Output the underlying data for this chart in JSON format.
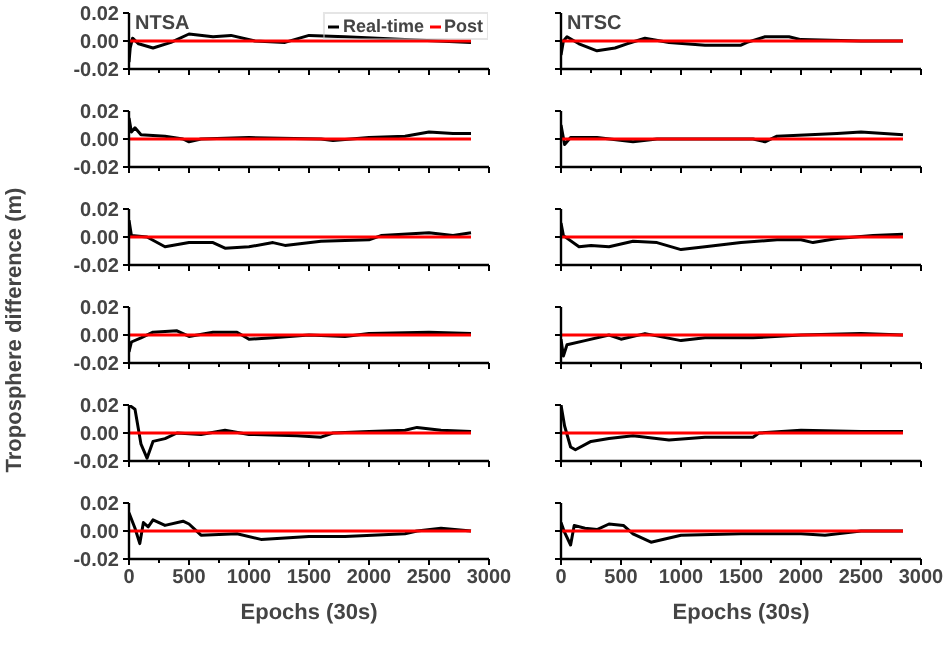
{
  "chart_data": [
    {
      "type": "line",
      "title": "NTSA",
      "ylabel": "Troposphere difference (m)",
      "legend": "top right",
      "tick_labels": "y",
      "xlim": [
        0,
        3000
      ],
      "ylim": [
        -0.02,
        0.02
      ],
      "xticks": [
        0,
        {
          "value": 250,
          "label": null
        },
        500,
        {
          "value": 750,
          "label": null
        },
        1000,
        {
          "value": 1250,
          "label": null
        },
        1500,
        {
          "value": 1750,
          "label": null
        },
        2000,
        {
          "value": 2250,
          "label": null
        },
        2500,
        {
          "value": 2750,
          "label": null
        },
        3000
      ],
      "yticks": [
        {
          "value": -0.02,
          "label": "-0.02"
        },
        {
          "value": 0,
          "label": "0.00"
        },
        {
          "value": 0.02,
          "label": "0.02"
        }
      ],
      "series": [
        {
          "name": "Real-time",
          "color": "#000000",
          "x": [
            0,
            10,
            30,
            80,
            200,
            350,
            500,
            700,
            850,
            1050,
            1300,
            1500,
            1800,
            2300,
            2850
          ],
          "values": [
            -0.015,
            -0.005,
            0.002,
            -0.002,
            -0.005,
            -0.001,
            0.005,
            0.003,
            0.004,
            0.0,
            -0.001,
            0.004,
            0.003,
            0.001,
            -0.001
          ]
        },
        {
          "name": "Post",
          "color": "#ff0000",
          "x": [
            0,
            2850
          ],
          "values": [
            0,
            0
          ]
        }
      ]
    },
    {
      "type": "line",
      "title": "NTSC",
      "tick_labels": false,
      "xlim": [
        0,
        3000
      ],
      "ylim": [
        -0.02,
        0.02
      ],
      "xticks": [
        0,
        {
          "value": 250,
          "label": null
        },
        500,
        {
          "value": 750,
          "label": null
        },
        1000,
        {
          "value": 1250,
          "label": null
        },
        1500,
        {
          "value": 1750,
          "label": null
        },
        2000,
        {
          "value": 2250,
          "label": null
        },
        2500,
        {
          "value": 2750,
          "label": null
        },
        3000
      ],
      "yticks": [
        {
          "value": -0.02,
          "label": null
        },
        {
          "value": 0,
          "label": null
        },
        {
          "value": 0.02,
          "label": null
        }
      ],
      "series": [
        {
          "color": "#000000",
          "x": [
            0,
            20,
            50,
            150,
            300,
            450,
            550,
            700,
            900,
            1200,
            1500,
            1550,
            1700,
            1900,
            2000,
            2500,
            2850
          ],
          "values": [
            -0.01,
            0.0,
            0.003,
            -0.002,
            -0.007,
            -0.005,
            -0.002,
            0.002,
            -0.001,
            -0.003,
            -0.003,
            -0.001,
            0.003,
            0.003,
            0.001,
            0.0,
            0.0
          ]
        },
        {
          "color": "#ff0000",
          "x": [
            0,
            2850
          ],
          "values": [
            0,
            0
          ]
        }
      ]
    },
    {
      "type": "line",
      "tick_labels": "y",
      "xlim": [
        0,
        3000
      ],
      "ylim": [
        -0.02,
        0.02
      ],
      "xticks": [
        0,
        {
          "value": 250,
          "label": null
        },
        500,
        {
          "value": 750,
          "label": null
        },
        1000,
        {
          "value": 1250,
          "label": null
        },
        1500,
        {
          "value": 1750,
          "label": null
        },
        2000,
        {
          "value": 2250,
          "label": null
        },
        2500,
        {
          "value": 2750,
          "label": null
        },
        3000
      ],
      "yticks": [
        {
          "value": -0.02,
          "label": "-0.02"
        },
        {
          "value": 0,
          "label": "0.00"
        },
        {
          "value": 0.02,
          "label": "0.02"
        }
      ],
      "series": [
        {
          "color": "#000000",
          "x": [
            0,
            20,
            50,
            100,
            300,
            450,
            500,
            600,
            1000,
            1600,
            1700,
            2000,
            2300,
            2500,
            2700,
            2850
          ],
          "values": [
            0.015,
            0.005,
            0.008,
            0.003,
            0.002,
            0.0,
            -0.002,
            0.0,
            0.001,
            0.0,
            -0.001,
            0.001,
            0.002,
            0.005,
            0.004,
            0.004
          ]
        },
        {
          "color": "#ff0000",
          "x": [
            0,
            2850
          ],
          "values": [
            0,
            0
          ]
        }
      ]
    },
    {
      "type": "line",
      "tick_labels": false,
      "xlim": [
        0,
        3000
      ],
      "ylim": [
        -0.02,
        0.02
      ],
      "xticks": [
        0,
        {
          "value": 250,
          "label": null
        },
        500,
        {
          "value": 750,
          "label": null
        },
        1000,
        {
          "value": 1250,
          "label": null
        },
        1500,
        {
          "value": 1750,
          "label": null
        },
        2000,
        {
          "value": 2250,
          "label": null
        },
        2500,
        {
          "value": 2750,
          "label": null
        },
        3000
      ],
      "yticks": [
        {
          "value": -0.02,
          "label": null
        },
        {
          "value": 0,
          "label": null
        },
        {
          "value": 0.02,
          "label": null
        }
      ],
      "series": [
        {
          "color": "#000000",
          "x": [
            0,
            30,
            80,
            300,
            600,
            800,
            1600,
            1700,
            1800,
            2300,
            2500,
            2850
          ],
          "values": [
            0.01,
            -0.004,
            0.001,
            0.001,
            -0.002,
            0.0,
            0.0,
            -0.002,
            0.002,
            0.004,
            0.005,
            0.003
          ]
        },
        {
          "color": "#ff0000",
          "x": [
            0,
            2850
          ],
          "values": [
            0,
            0
          ]
        }
      ]
    },
    {
      "type": "line",
      "tick_labels": "y",
      "xlim": [
        0,
        3000
      ],
      "ylim": [
        -0.02,
        0.02
      ],
      "xticks": [
        0,
        {
          "value": 250,
          "label": null
        },
        500,
        {
          "value": 750,
          "label": null
        },
        1000,
        {
          "value": 1250,
          "label": null
        },
        1500,
        {
          "value": 1750,
          "label": null
        },
        2000,
        {
          "value": 2250,
          "label": null
        },
        2500,
        {
          "value": 2750,
          "label": null
        },
        3000
      ],
      "yticks": [
        {
          "value": -0.02,
          "label": "-0.02"
        },
        {
          "value": 0,
          "label": "0.00"
        },
        {
          "value": 0.02,
          "label": "0.02"
        }
      ],
      "series": [
        {
          "color": "#000000",
          "x": [
            0,
            20,
            150,
            300,
            500,
            700,
            800,
            1000,
            1200,
            1300,
            1600,
            2000,
            2100,
            2500,
            2700,
            2850
          ],
          "values": [
            0.012,
            0.001,
            0.0,
            -0.007,
            -0.004,
            -0.004,
            -0.008,
            -0.007,
            -0.004,
            -0.006,
            -0.003,
            -0.002,
            0.001,
            0.003,
            0.001,
            0.003
          ]
        },
        {
          "color": "#ff0000",
          "x": [
            0,
            2850
          ],
          "values": [
            0,
            0
          ]
        }
      ]
    },
    {
      "type": "line",
      "tick_labels": false,
      "xlim": [
        0,
        3000
      ],
      "ylim": [
        -0.02,
        0.02
      ],
      "xticks": [
        0,
        {
          "value": 250,
          "label": null
        },
        500,
        {
          "value": 750,
          "label": null
        },
        1000,
        {
          "value": 1250,
          "label": null
        },
        1500,
        {
          "value": 1750,
          "label": null
        },
        2000,
        {
          "value": 2250,
          "label": null
        },
        2500,
        {
          "value": 2750,
          "label": null
        },
        3000
      ],
      "yticks": [
        {
          "value": -0.02,
          "label": null
        },
        {
          "value": 0,
          "label": null
        },
        {
          "value": 0.02,
          "label": null
        }
      ],
      "series": [
        {
          "color": "#000000",
          "x": [
            0,
            20,
            150,
            250,
            400,
            600,
            800,
            1000,
            1200,
            1500,
            1800,
            2000,
            2100,
            2300,
            2600,
            2850
          ],
          "values": [
            0.01,
            0.001,
            -0.007,
            -0.006,
            -0.007,
            -0.003,
            -0.004,
            -0.009,
            -0.007,
            -0.004,
            -0.002,
            -0.002,
            -0.004,
            -0.001,
            0.001,
            0.002
          ]
        },
        {
          "color": "#ff0000",
          "x": [
            0,
            2850
          ],
          "values": [
            0,
            0
          ]
        }
      ]
    },
    {
      "type": "line",
      "tick_labels": "y",
      "xlim": [
        0,
        3000
      ],
      "ylim": [
        -0.02,
        0.02
      ],
      "xticks": [
        0,
        {
          "value": 250,
          "label": null
        },
        500,
        {
          "value": 750,
          "label": null
        },
        1000,
        {
          "value": 1250,
          "label": null
        },
        1500,
        {
          "value": 1750,
          "label": null
        },
        2000,
        {
          "value": 2250,
          "label": null
        },
        2500,
        {
          "value": 2750,
          "label": null
        },
        3000
      ],
      "yticks": [
        {
          "value": -0.02,
          "label": "-0.02"
        },
        {
          "value": 0,
          "label": "0.00"
        },
        {
          "value": 0.02,
          "label": "0.02"
        }
      ],
      "series": [
        {
          "color": "#000000",
          "x": [
            0,
            20,
            100,
            200,
            400,
            500,
            700,
            900,
            1000,
            1200,
            1500,
            1800,
            2000,
            2500,
            2850
          ],
          "values": [
            -0.012,
            -0.005,
            -0.002,
            0.002,
            0.003,
            -0.001,
            0.002,
            0.002,
            -0.003,
            -0.002,
            0.0,
            -0.001,
            0.001,
            0.002,
            0.001
          ]
        },
        {
          "color": "#ff0000",
          "x": [
            0,
            2850
          ],
          "values": [
            0,
            0
          ]
        }
      ]
    },
    {
      "type": "line",
      "tick_labels": false,
      "xlim": [
        0,
        3000
      ],
      "ylim": [
        -0.02,
        0.02
      ],
      "xticks": [
        0,
        {
          "value": 250,
          "label": null
        },
        500,
        {
          "value": 750,
          "label": null
        },
        1000,
        {
          "value": 1250,
          "label": null
        },
        1500,
        {
          "value": 1750,
          "label": null
        },
        2000,
        {
          "value": 2250,
          "label": null
        },
        2500,
        {
          "value": 2750,
          "label": null
        },
        3000
      ],
      "yticks": [
        {
          "value": -0.02,
          "label": null
        },
        {
          "value": 0,
          "label": null
        },
        {
          "value": 0.02,
          "label": null
        }
      ],
      "series": [
        {
          "color": "#000000",
          "x": [
            0,
            20,
            50,
            200,
            400,
            500,
            700,
            1000,
            1200,
            1600,
            2000,
            2500,
            2850
          ],
          "values": [
            -0.003,
            -0.015,
            -0.007,
            -0.004,
            0.0,
            -0.003,
            0.001,
            -0.004,
            -0.002,
            -0.002,
            0.0,
            0.001,
            0.0
          ]
        },
        {
          "color": "#ff0000",
          "x": [
            0,
            2850
          ],
          "values": [
            0,
            0
          ]
        }
      ]
    },
    {
      "type": "line",
      "tick_labels": "y",
      "xlim": [
        0,
        3000
      ],
      "ylim": [
        -0.02,
        0.02
      ],
      "xticks": [
        0,
        {
          "value": 250,
          "label": null
        },
        500,
        {
          "value": 750,
          "label": null
        },
        1000,
        {
          "value": 1250,
          "label": null
        },
        1500,
        {
          "value": 1750,
          "label": null
        },
        2000,
        {
          "value": 2250,
          "label": null
        },
        2500,
        {
          "value": 2750,
          "label": null
        },
        3000
      ],
      "yticks": [
        {
          "value": -0.02,
          "label": "-0.02"
        },
        {
          "value": 0,
          "label": "0.00"
        },
        {
          "value": 0.02,
          "label": "0.02"
        }
      ],
      "series": [
        {
          "color": "#000000",
          "x": [
            0,
            50,
            100,
            150,
            200,
            300,
            400,
            600,
            800,
            1000,
            1400,
            1600,
            1700,
            2000,
            2300,
            2400,
            2600,
            2850
          ],
          "values": [
            0.02,
            0.017,
            -0.008,
            -0.018,
            -0.006,
            -0.004,
            0.0,
            -0.001,
            0.002,
            -0.001,
            -0.002,
            -0.003,
            0.0,
            0.001,
            0.002,
            0.004,
            0.002,
            0.001
          ]
        },
        {
          "color": "#ff0000",
          "x": [
            0,
            2850
          ],
          "values": [
            0,
            0
          ]
        }
      ]
    },
    {
      "type": "line",
      "tick_labels": false,
      "xlim": [
        0,
        3000
      ],
      "ylim": [
        -0.02,
        0.02
      ],
      "xticks": [
        0,
        {
          "value": 250,
          "label": null
        },
        500,
        {
          "value": 750,
          "label": null
        },
        1000,
        {
          "value": 1250,
          "label": null
        },
        1500,
        {
          "value": 1750,
          "label": null
        },
        2000,
        {
          "value": 2250,
          "label": null
        },
        2500,
        {
          "value": 2750,
          "label": null
        },
        3000
      ],
      "yticks": [
        {
          "value": -0.02,
          "label": null
        },
        {
          "value": 0,
          "label": null
        },
        {
          "value": 0.02,
          "label": null
        }
      ],
      "series": [
        {
          "color": "#000000",
          "x": [
            0,
            30,
            80,
            120,
            250,
            400,
            600,
            900,
            1200,
            1600,
            1650,
            2000,
            2500,
            2850
          ],
          "values": [
            0.02,
            0.005,
            -0.01,
            -0.012,
            -0.006,
            -0.004,
            -0.002,
            -0.005,
            -0.003,
            -0.003,
            0.0,
            0.002,
            0.001,
            0.001
          ]
        },
        {
          "color": "#ff0000",
          "x": [
            0,
            2850
          ],
          "values": [
            0,
            0
          ]
        }
      ]
    },
    {
      "type": "line",
      "xlabel": "Epochs (30s)",
      "xlim": [
        0,
        3000
      ],
      "ylim": [
        -0.02,
        0.02
      ],
      "xticks": [
        0,
        {
          "value": 250,
          "label": null
        },
        500,
        {
          "value": 750,
          "label": null
        },
        1000,
        {
          "value": 1250,
          "label": null
        },
        1500,
        {
          "value": 1750,
          "label": null
        },
        2000,
        {
          "value": 2250,
          "label": null
        },
        2500,
        {
          "value": 2750,
          "label": null
        },
        3000
      ],
      "yticks": [
        {
          "value": -0.02,
          "label": "-0.02"
        },
        {
          "value": 0,
          "label": "0.00"
        },
        {
          "value": 0.02,
          "label": "0.02"
        }
      ],
      "series": [
        {
          "color": "#000000",
          "x": [
            0,
            50,
            90,
            120,
            160,
            200,
            300,
            450,
            500,
            600,
            900,
            1100,
            1500,
            1800,
            2300,
            2400,
            2600,
            2850
          ],
          "values": [
            0.013,
            0.002,
            -0.009,
            0.006,
            0.003,
            0.008,
            0.004,
            0.007,
            0.005,
            -0.003,
            -0.002,
            -0.006,
            -0.004,
            -0.004,
            -0.002,
            0.0,
            0.002,
            0.0
          ]
        },
        {
          "color": "#ff0000",
          "x": [
            0,
            2850
          ],
          "values": [
            0,
            0
          ]
        }
      ]
    },
    {
      "type": "line",
      "xlabel": "Epochs (30s)",
      "tick_labels": "x",
      "xlim": [
        0,
        3000
      ],
      "ylim": [
        -0.02,
        0.02
      ],
      "xticks": [
        0,
        {
          "value": 250,
          "label": null
        },
        500,
        {
          "value": 750,
          "label": null
        },
        1000,
        {
          "value": 1250,
          "label": null
        },
        1500,
        {
          "value": 1750,
          "label": null
        },
        2000,
        {
          "value": 2250,
          "label": null
        },
        2500,
        {
          "value": 2750,
          "label": null
        },
        3000
      ],
      "yticks": [
        {
          "value": -0.02,
          "label": null
        },
        {
          "value": 0,
          "label": null
        },
        {
          "value": 0.02,
          "label": null
        }
      ],
      "series": [
        {
          "color": "#000000",
          "x": [
            0,
            30,
            80,
            110,
            200,
            300,
            400,
            520,
            600,
            750,
            1000,
            1500,
            2000,
            2200,
            2500,
            2850
          ],
          "values": [
            0.006,
            -0.001,
            -0.01,
            0.004,
            0.002,
            0.001,
            0.005,
            0.004,
            -0.002,
            -0.008,
            -0.003,
            -0.002,
            -0.002,
            -0.003,
            0.0,
            0.0
          ]
        },
        {
          "color": "#ff0000",
          "x": [
            0,
            2850
          ],
          "values": [
            0,
            0
          ]
        }
      ]
    }
  ]
}
